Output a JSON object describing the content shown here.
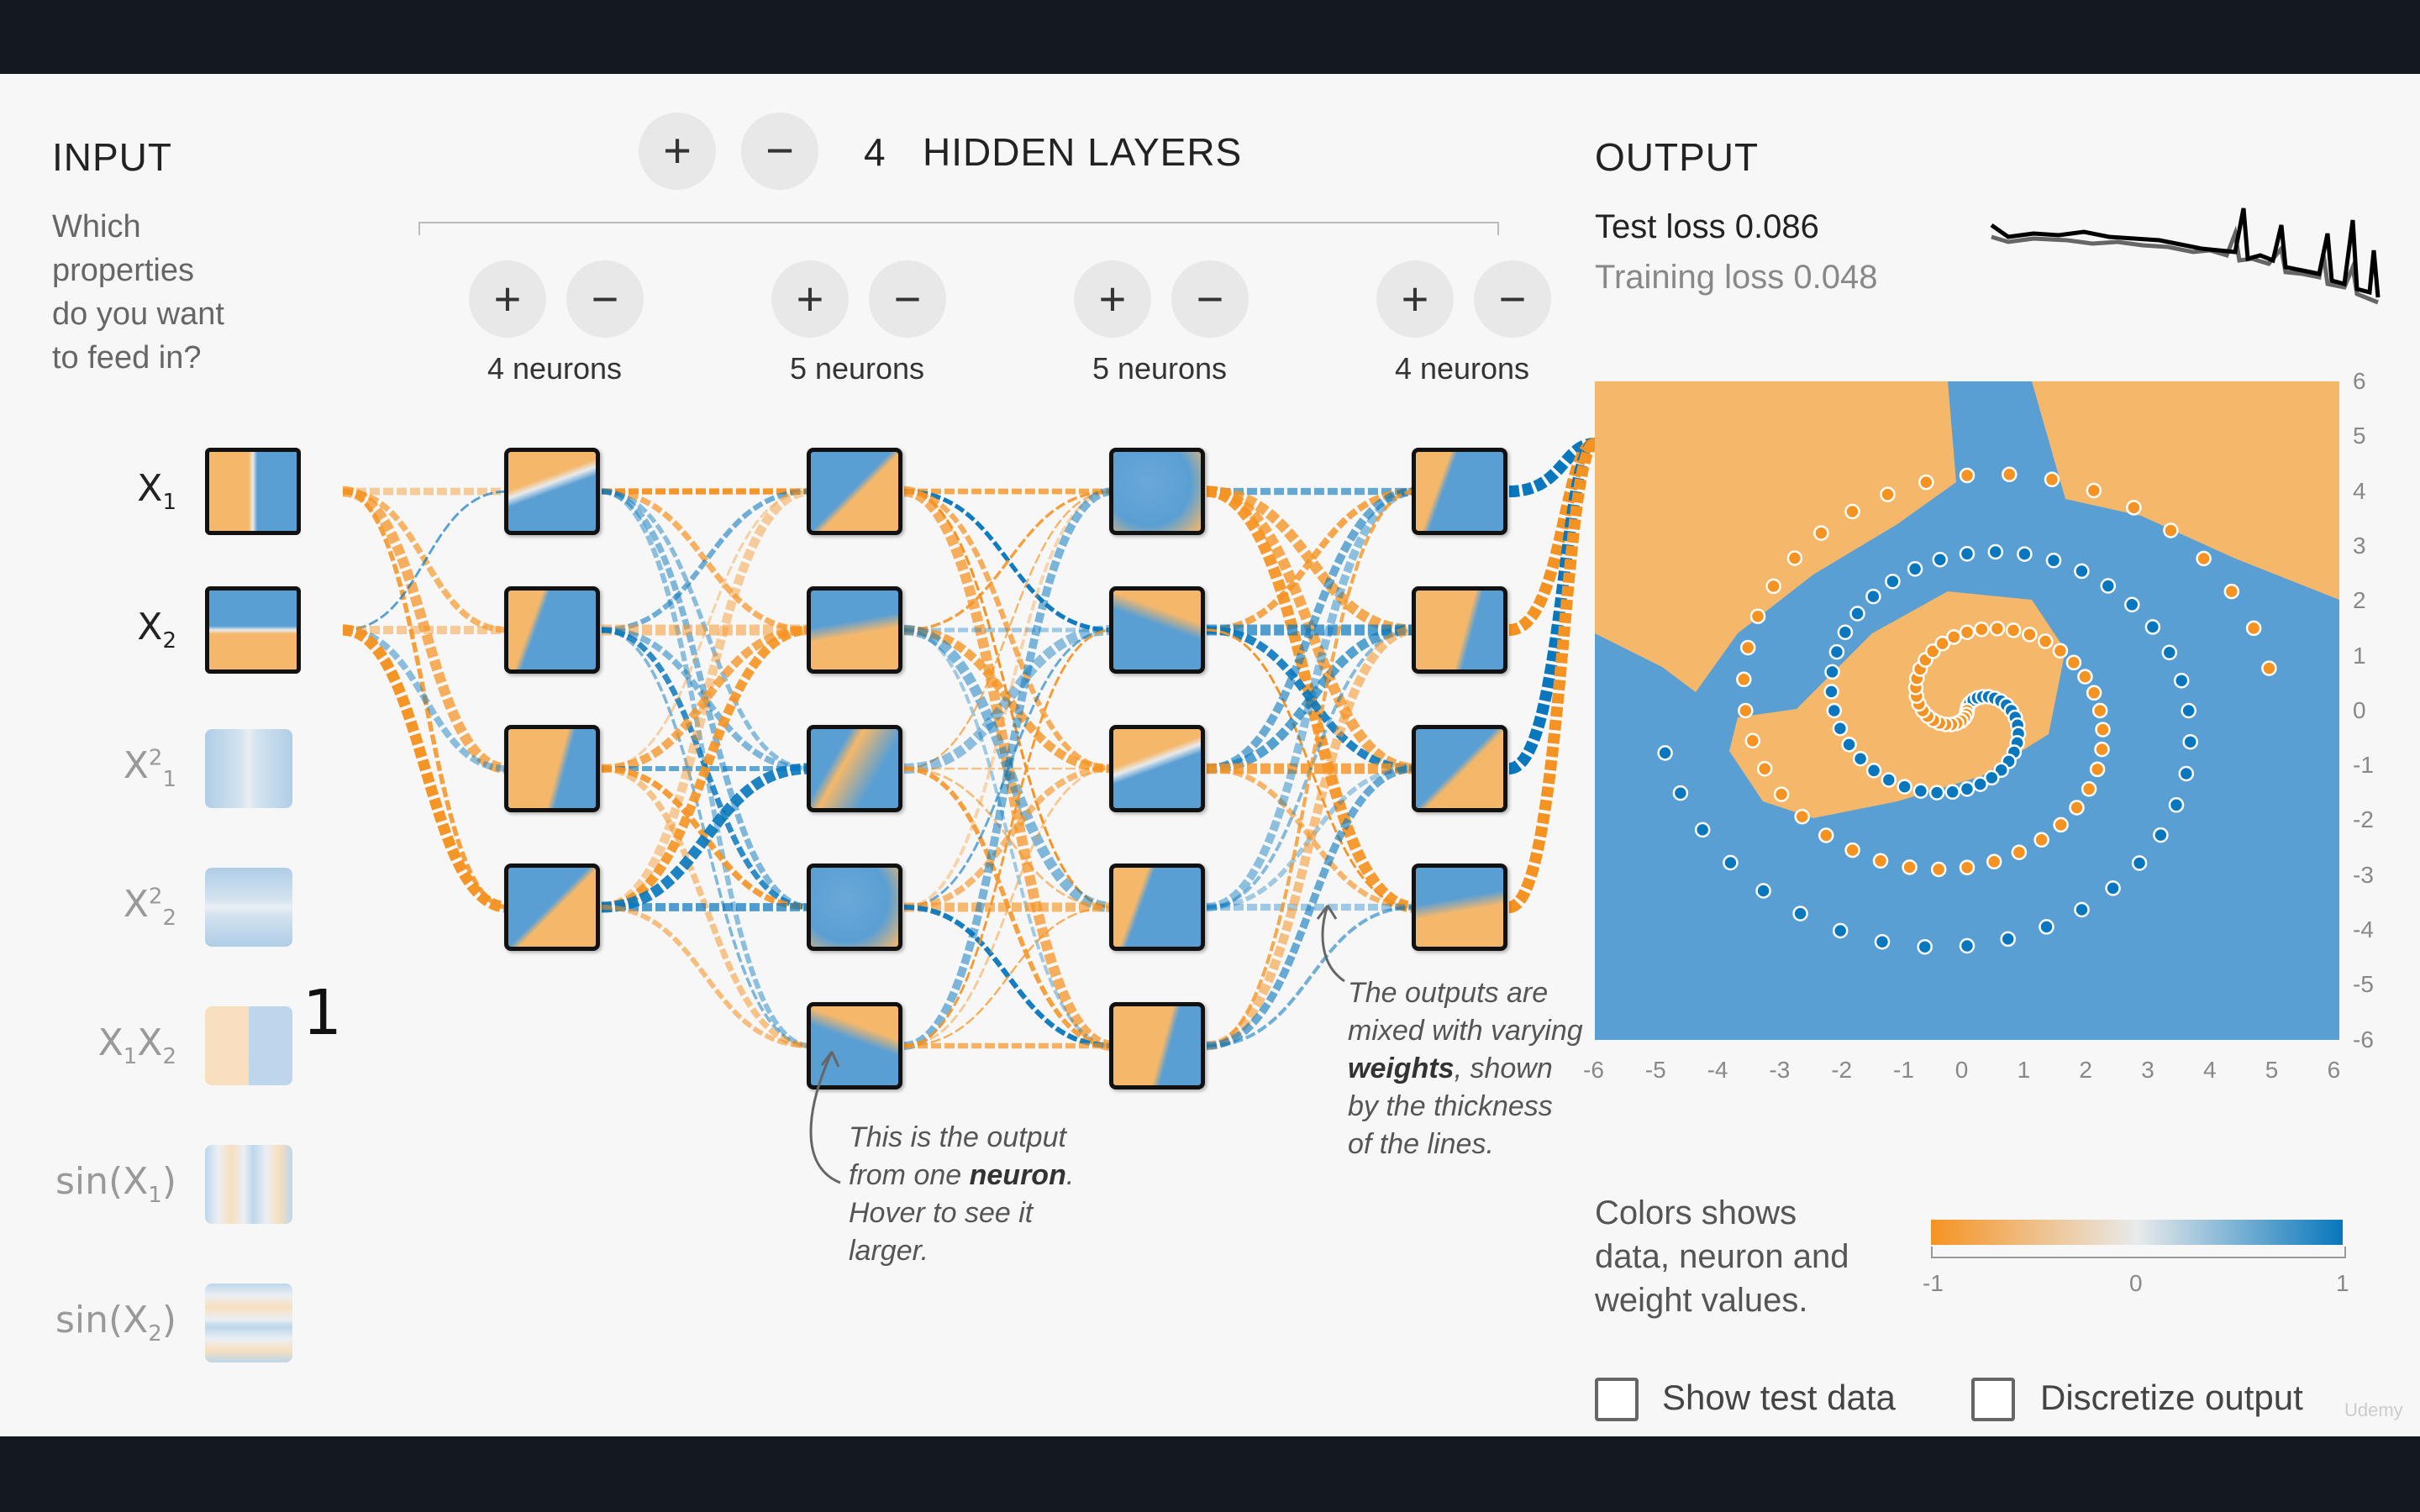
{
  "input": {
    "title": "INPUT",
    "prompt": "Which properties do you want to feed in?",
    "features": [
      {
        "label": "X",
        "sub": "1",
        "sup": "",
        "active": true,
        "pattern": "x1"
      },
      {
        "label": "X",
        "sub": "2",
        "sup": "",
        "active": true,
        "pattern": "x2"
      },
      {
        "label": "X",
        "sub": "1",
        "sup": "2",
        "active": false,
        "pattern": "x1sq"
      },
      {
        "label": "X",
        "sub": "2",
        "sup": "2",
        "active": false,
        "pattern": "x2sq"
      },
      {
        "label": "X",
        "sub": "1",
        "sup": "",
        "extra": "X",
        "extra_sub": "2",
        "active": false,
        "pattern": "x1x2"
      },
      {
        "label": "sin(X",
        "sub": "1",
        "sup": "",
        "close": ")",
        "active": false,
        "pattern": "sinx1"
      },
      {
        "label": "sin(X",
        "sub": "2",
        "sup": "",
        "close": ")",
        "active": false,
        "pattern": "sinx2"
      }
    ],
    "annotation_number": "1"
  },
  "hidden": {
    "count": "4",
    "title": "HIDDEN LAYERS",
    "add_label": "+",
    "remove_label": "−",
    "layers": [
      {
        "label": "4 neurons",
        "neurons": 4
      },
      {
        "label": "5 neurons",
        "neurons": 5
      },
      {
        "label": "5 neurons",
        "neurons": 5
      },
      {
        "label": "4 neurons",
        "neurons": 4
      }
    ]
  },
  "notes": {
    "neuron_note_1": "This is the output",
    "neuron_note_2a": "from one ",
    "neuron_note_2b": "neuron",
    "neuron_note_2c": ".",
    "neuron_note_3": "Hover to see it",
    "neuron_note_4": "larger.",
    "weights_note_1": "The outputs are",
    "weights_note_2": "mixed with varying",
    "weights_note_3a": "weights",
    "weights_note_3b": ", shown",
    "weights_note_4": "by the thickness",
    "weights_note_5": "of the lines."
  },
  "output": {
    "title": "OUTPUT",
    "test_loss_label": "Test loss ",
    "test_loss_value": "0.086",
    "training_loss_label": "Training loss ",
    "training_loss_value": "0.048",
    "y_ticks": [
      "6",
      "5",
      "4",
      "3",
      "2",
      "1",
      "0",
      "-1",
      "-2",
      "-3",
      "-4",
      "-5",
      "-6"
    ],
    "x_ticks": [
      "-6",
      "-5",
      "-4",
      "-3",
      "-2",
      "-1",
      "0",
      "1",
      "2",
      "3",
      "4",
      "5",
      "6"
    ],
    "legend_text_1": "Colors shows",
    "legend_text_2": "data, neuron and",
    "legend_text_3": "weight values.",
    "legend_ticks": [
      "-1",
      "0",
      "1"
    ],
    "show_test_data": "Show test data",
    "discretize_output": "Discretize output",
    "watermark": "Udemy"
  },
  "colors": {
    "orange": "#f59322",
    "blue": "#0877bd",
    "light_orange": "#f5b86a",
    "light_blue": "#5a9fd4",
    "background": "#f7f7f7"
  }
}
